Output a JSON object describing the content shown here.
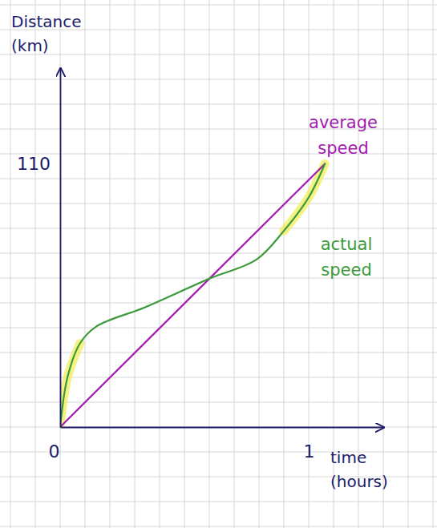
{
  "chart_data": {
    "type": "line",
    "x_label": "time (hours)",
    "y_label": "Distance (km)",
    "xlim": [
      0,
      1.3
    ],
    "xticks": [
      0,
      1
    ],
    "ylim": [
      0,
      150
    ],
    "yticks": [
      110
    ],
    "grid": true,
    "series": [
      {
        "name": "average speed",
        "color": "#a21caf",
        "x": [
          0,
          1.065
        ],
        "values": [
          0,
          110
        ]
      },
      {
        "name": "actual speed",
        "color": "#3c9a3c",
        "x": [
          0,
          0.03,
          0.08,
          0.145,
          0.34,
          0.6,
          0.79,
          0.9,
          1.0,
          1.065
        ],
        "values": [
          0,
          21,
          35,
          42,
          50,
          62,
          70,
          82,
          96,
          110
        ]
      }
    ]
  }
}
